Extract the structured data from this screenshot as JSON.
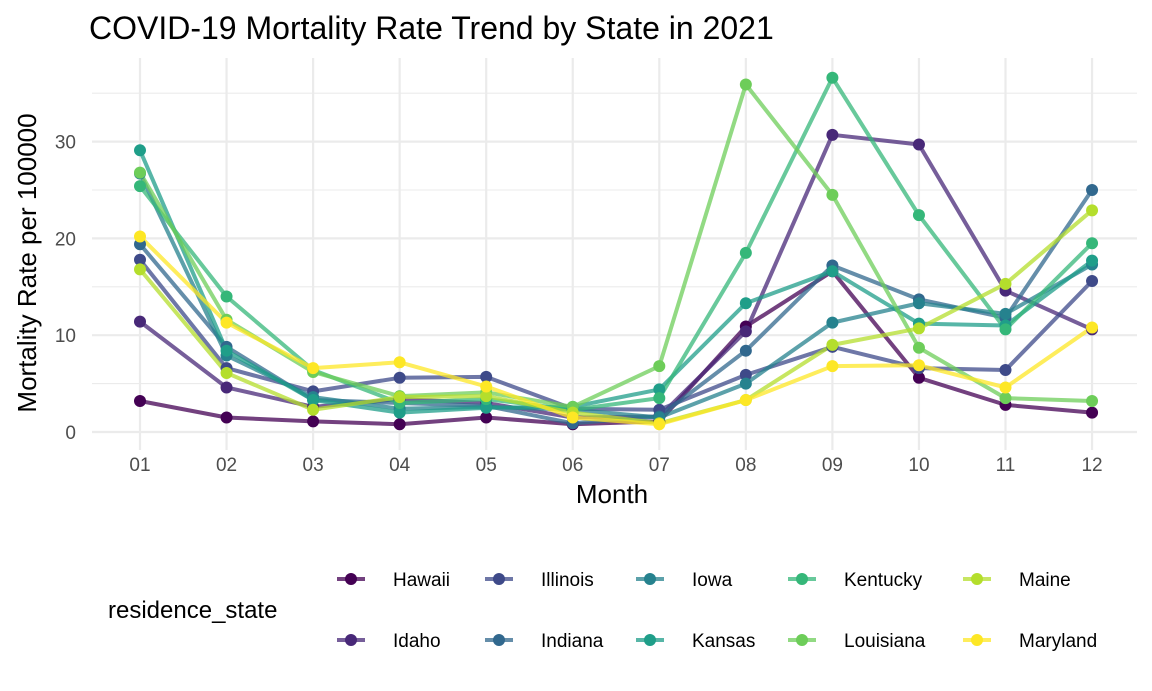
{
  "chart_data": {
    "type": "line",
    "title": "COVID-19 Mortality Rate Trend by State in 2021",
    "xlabel": "Month",
    "ylabel": "Mortality Rate per 100000",
    "categories": [
      "01",
      "02",
      "03",
      "04",
      "05",
      "06",
      "07",
      "08",
      "09",
      "10",
      "11",
      "12"
    ],
    "ylim": [
      0,
      37
    ],
    "yticks": [
      0,
      10,
      20,
      30
    ],
    "grid": true,
    "legend": {
      "title": "residence_state",
      "position": "bottom",
      "columns": [
        [
          "Hawaii",
          "Idaho"
        ],
        [
          "Illinois",
          "Indiana"
        ],
        [
          "Iowa",
          "Kansas"
        ],
        [
          "Kentucky",
          "Louisiana"
        ],
        [
          "Maine",
          "Maryland"
        ]
      ]
    },
    "series": [
      {
        "name": "Hawaii",
        "color": "#440154",
        "values": [
          3.2,
          1.5,
          1.1,
          0.8,
          1.5,
          0.8,
          1.1,
          10.9,
          16.6,
          5.6,
          2.8,
          2.0
        ]
      },
      {
        "name": "Idaho",
        "color": "#482878",
        "values": [
          11.4,
          4.6,
          2.6,
          3.4,
          3.0,
          1.5,
          1.6,
          10.4,
          30.7,
          29.7,
          14.6,
          10.6
        ]
      },
      {
        "name": "Illinois",
        "color": "#3E4A89",
        "values": [
          17.8,
          6.6,
          4.2,
          5.6,
          5.7,
          2.4,
          2.3,
          5.9,
          8.8,
          6.6,
          6.4,
          15.6
        ]
      },
      {
        "name": "Indiana",
        "color": "#31688E",
        "values": [
          19.4,
          8.8,
          3.3,
          3.0,
          2.7,
          0.9,
          1.6,
          8.4,
          17.2,
          13.7,
          11.8,
          25.0
        ]
      },
      {
        "name": "Iowa",
        "color": "#26828E",
        "values": [
          26.7,
          7.9,
          3.6,
          2.4,
          2.6,
          2.3,
          1.5,
          5.0,
          11.3,
          13.3,
          12.2,
          17.3
        ]
      },
      {
        "name": "Kansas",
        "color": "#1F9E89",
        "values": [
          29.1,
          8.4,
          3.3,
          2.0,
          2.5,
          2.6,
          4.4,
          13.3,
          16.6,
          11.2,
          11.0,
          17.7
        ]
      },
      {
        "name": "Kentucky",
        "color": "#35B779",
        "values": [
          25.4,
          14.0,
          6.4,
          3.0,
          3.4,
          2.3,
          3.5,
          18.5,
          36.6,
          22.4,
          10.6,
          19.5
        ]
      },
      {
        "name": "Louisiana",
        "color": "#6DCD59",
        "values": [
          26.8,
          11.6,
          6.2,
          3.7,
          4.1,
          2.6,
          6.8,
          35.9,
          24.5,
          8.7,
          3.5,
          3.2
        ]
      },
      {
        "name": "Maine",
        "color": "#B4DE2C",
        "values": [
          16.8,
          6.1,
          2.3,
          3.6,
          3.7,
          2.0,
          0.9,
          3.3,
          9.0,
          10.7,
          15.3,
          22.9
        ]
      },
      {
        "name": "Maryland",
        "color": "#FDE725",
        "values": [
          20.2,
          11.3,
          6.6,
          7.2,
          4.7,
          1.5,
          0.8,
          3.3,
          6.8,
          6.9,
          4.6,
          10.8
        ]
      }
    ]
  }
}
